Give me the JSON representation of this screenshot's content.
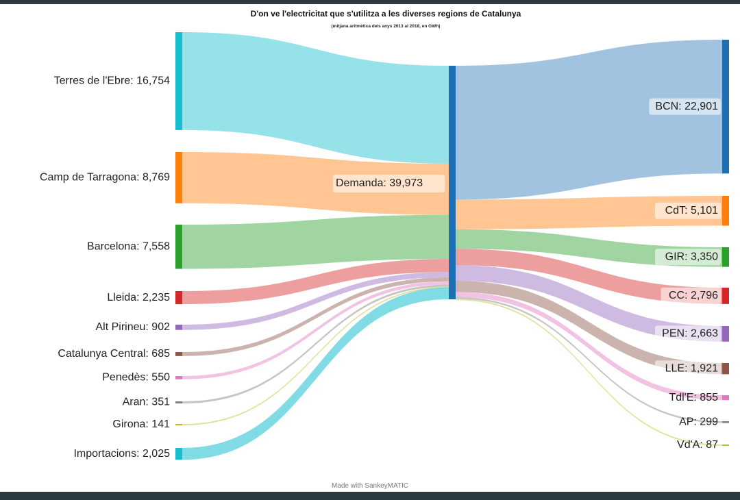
{
  "chart_data": {
    "type": "sankey",
    "title": "D'on ve l'electricitat que s'utilitza a les diverses regions de Catalunya",
    "subtitle": "(mitjana aritmètica dels anys 2013 al 2018, en GWh)",
    "footer": "Made with SankeyMATIC",
    "hub": {
      "id": "hub",
      "name": "Demanda",
      "value": 39973,
      "label": "Demanda: 39,973",
      "color": "#1f6fb5"
    },
    "sources": [
      {
        "id": "ebre",
        "name": "Terres de l'Ebre",
        "value": 16754,
        "label": "Terres de l'Ebre: 16,754",
        "color": "#17becf"
      },
      {
        "id": "tarragona",
        "name": "Camp de Tarragona",
        "value": 8769,
        "label": "Camp de Tarragona: 8,769",
        "color": "#ff7f0e"
      },
      {
        "id": "barcelona",
        "name": "Barcelona",
        "value": 7558,
        "label": "Barcelona: 7,558",
        "color": "#2ca02c"
      },
      {
        "id": "lleida",
        "name": "Lleida",
        "value": 2235,
        "label": "Lleida: 2,235",
        "color": "#d62728"
      },
      {
        "id": "altpirineu",
        "name": "Alt Pirineu",
        "value": 902,
        "label": "Alt Pirineu: 902",
        "color": "#9467bd"
      },
      {
        "id": "catcentral",
        "name": "Catalunya Central",
        "value": 685,
        "label": "Catalunya Central: 685",
        "color": "#8c564b"
      },
      {
        "id": "penedes",
        "name": "Penedès",
        "value": 550,
        "label": "Penedès: 550",
        "color": "#e377c2"
      },
      {
        "id": "aran",
        "name": "Aran",
        "value": 351,
        "label": "Aran: 351",
        "color": "#7f7f7f"
      },
      {
        "id": "girona",
        "name": "Girona",
        "value": 141,
        "label": "Girona: 141",
        "color": "#bcbd22"
      },
      {
        "id": "importacions",
        "name": "Importacions",
        "value": 2025,
        "label": "Importacions: 2,025",
        "color": "#17becf"
      }
    ],
    "targets": [
      {
        "id": "bcn",
        "name": "BCN",
        "value": 22901,
        "label": "BCN: 22,901",
        "color": "#1f6fb5"
      },
      {
        "id": "cdt",
        "name": "CdT",
        "value": 5101,
        "label": "CdT: 5,101",
        "color": "#ff7f0e"
      },
      {
        "id": "gir",
        "name": "GIR",
        "value": 3350,
        "label": "GIR: 3,350",
        "color": "#2ca02c"
      },
      {
        "id": "cc",
        "name": "CC",
        "value": 2796,
        "label": "CC: 2,796",
        "color": "#d62728"
      },
      {
        "id": "pen",
        "name": "PEN",
        "value": 2663,
        "label": "PEN: 2,663",
        "color": "#9467bd"
      },
      {
        "id": "lle",
        "name": "LLE",
        "value": 1921,
        "label": "LLE: 1,921",
        "color": "#8c564b"
      },
      {
        "id": "tdle",
        "name": "Tdl'E",
        "value": 855,
        "label": "Tdl'E: 855",
        "color": "#e377c2"
      },
      {
        "id": "ap",
        "name": "AP",
        "value": 299,
        "label": "AP: 299",
        "color": "#7f7f7f"
      },
      {
        "id": "vda",
        "name": "Vd'A",
        "value": 87,
        "label": "Vd'A: 87",
        "color": "#bcbd22"
      }
    ]
  }
}
